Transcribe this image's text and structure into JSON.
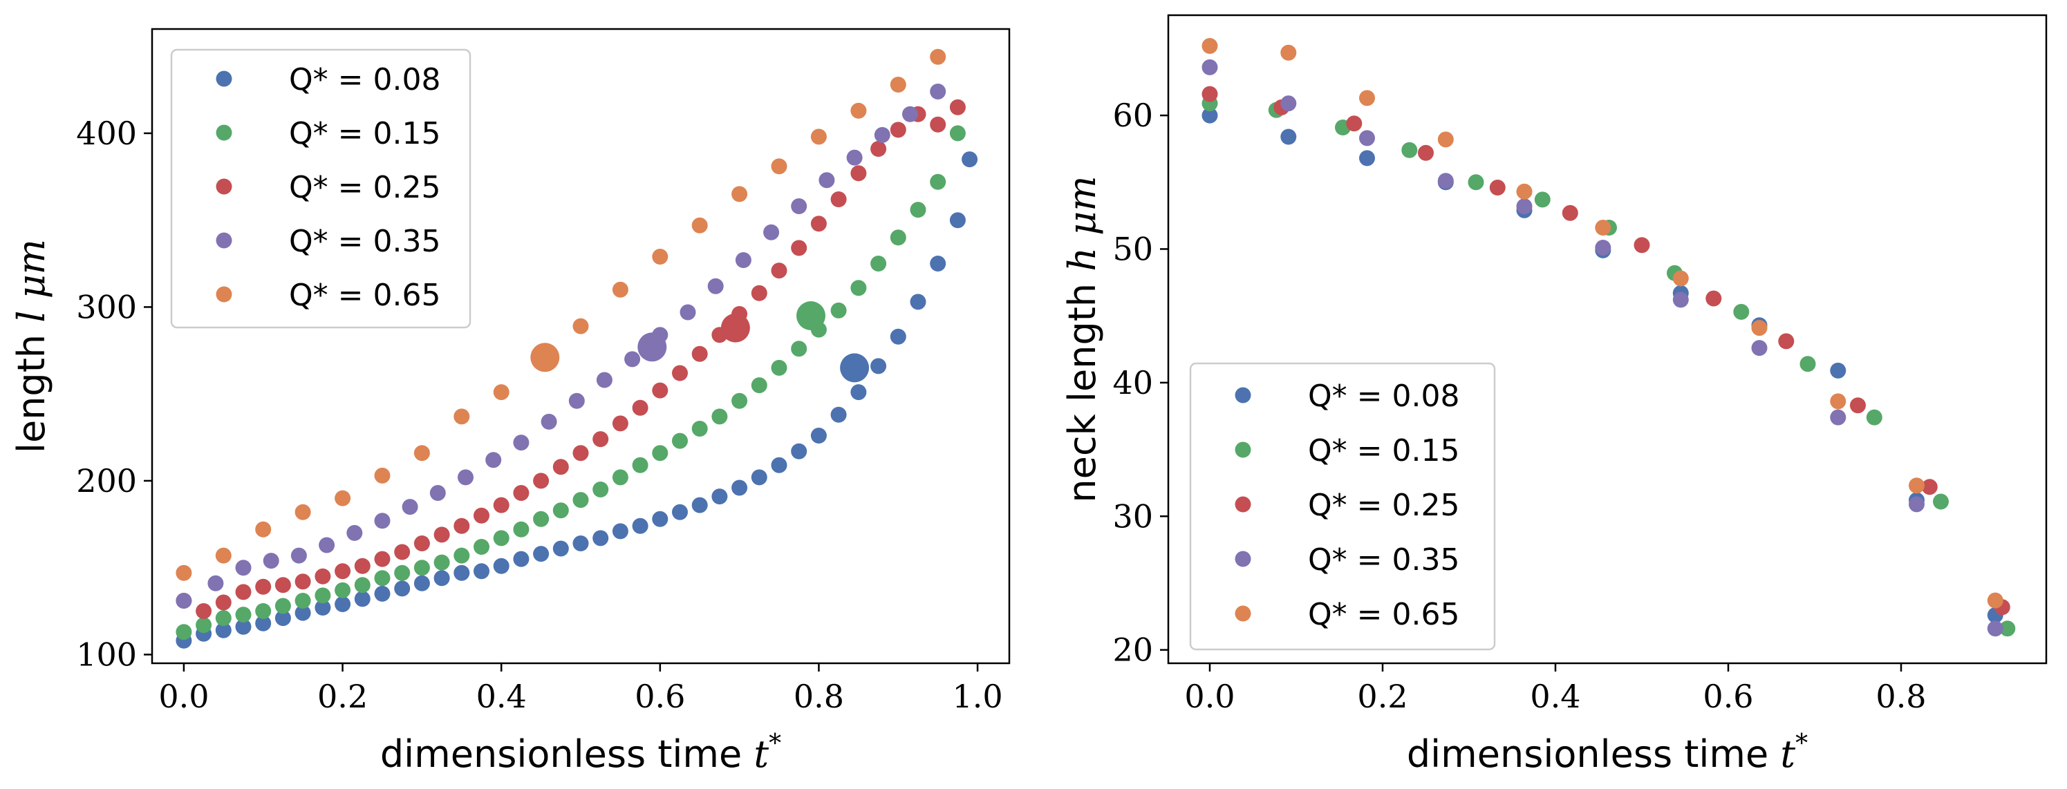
{
  "chart_data": [
    {
      "type": "scatter",
      "xlabel": "dimensionless time t*",
      "ylabel": "length l μm",
      "xlim": [
        -0.04,
        1.04
      ],
      "ylim": [
        95,
        460
      ],
      "xticks": [
        0.0,
        0.2,
        0.4,
        0.6,
        0.8,
        1.0
      ],
      "xtick_labels": [
        "0.0",
        "0.2",
        "0.4",
        "0.6",
        "0.8",
        "1.0"
      ],
      "yticks": [
        100,
        200,
        300,
        400
      ],
      "ytick_labels": [
        "100",
        "200",
        "300",
        "400"
      ],
      "legend_position": "top-left",
      "series": [
        {
          "name": "Q* = 0.08",
          "color": "#4C72B0",
          "x": [
            0.0,
            0.025,
            0.05,
            0.075,
            0.1,
            0.125,
            0.15,
            0.175,
            0.2,
            0.225,
            0.25,
            0.275,
            0.3,
            0.325,
            0.35,
            0.375,
            0.4,
            0.425,
            0.45,
            0.475,
            0.5,
            0.525,
            0.55,
            0.575,
            0.6,
            0.625,
            0.65,
            0.675,
            0.7,
            0.725,
            0.75,
            0.775,
            0.8,
            0.825,
            0.85,
            0.875,
            0.9,
            0.925,
            0.95,
            0.975,
            0.99
          ],
          "y": [
            108,
            112,
            114,
            116,
            118,
            121,
            124,
            127,
            129,
            132,
            135,
            138,
            141,
            144,
            147,
            148,
            151,
            155,
            158,
            161,
            164,
            167,
            171,
            174,
            178,
            182,
            186,
            191,
            196,
            202,
            209,
            217,
            226,
            238,
            251,
            266,
            283,
            303,
            325,
            350,
            385
          ],
          "highlight": {
            "x": 0.845,
            "y": 265
          }
        },
        {
          "name": "Q* = 0.15",
          "color": "#55A868",
          "x": [
            0.0,
            0.025,
            0.05,
            0.075,
            0.1,
            0.125,
            0.15,
            0.175,
            0.2,
            0.225,
            0.25,
            0.275,
            0.3,
            0.325,
            0.35,
            0.375,
            0.4,
            0.425,
            0.45,
            0.475,
            0.5,
            0.525,
            0.55,
            0.575,
            0.6,
            0.625,
            0.65,
            0.675,
            0.7,
            0.725,
            0.75,
            0.775,
            0.8,
            0.825,
            0.85,
            0.875,
            0.9,
            0.925,
            0.95,
            0.975
          ],
          "y": [
            113,
            117,
            121,
            123,
            125,
            128,
            131,
            134,
            137,
            140,
            144,
            147,
            150,
            153,
            157,
            162,
            167,
            172,
            178,
            183,
            189,
            195,
            202,
            209,
            216,
            223,
            230,
            237,
            246,
            255,
            265,
            276,
            287,
            298,
            311,
            325,
            340,
            356,
            372,
            400
          ],
          "highlight": {
            "x": 0.79,
            "y": 295
          }
        },
        {
          "name": "Q* = 0.25",
          "color": "#C44E52",
          "x": [
            0.0,
            0.025,
            0.05,
            0.075,
            0.1,
            0.125,
            0.15,
            0.175,
            0.2,
            0.225,
            0.25,
            0.275,
            0.3,
            0.325,
            0.35,
            0.375,
            0.4,
            0.425,
            0.45,
            0.475,
            0.5,
            0.525,
            0.55,
            0.575,
            0.6,
            0.625,
            0.65,
            0.675,
            0.7,
            0.725,
            0.75,
            0.775,
            0.8,
            0.825,
            0.85,
            0.875,
            0.9,
            0.925,
            0.95,
            0.975
          ],
          "y": [
            131,
            125,
            130,
            136,
            139,
            140,
            142,
            145,
            148,
            151,
            155,
            159,
            164,
            169,
            174,
            180,
            186,
            193,
            200,
            208,
            216,
            224,
            233,
            242,
            252,
            262,
            273,
            284,
            296,
            308,
            321,
            334,
            348,
            362,
            377,
            391,
            402,
            411,
            405,
            415
          ],
          "highlight": {
            "x": 0.695,
            "y": 288
          }
        },
        {
          "name": "Q* = 0.35",
          "color": "#8172B2",
          "x": [
            0.0,
            0.04,
            0.075,
            0.11,
            0.145,
            0.18,
            0.215,
            0.25,
            0.285,
            0.32,
            0.355,
            0.39,
            0.425,
            0.46,
            0.495,
            0.53,
            0.565,
            0.6,
            0.635,
            0.67,
            0.705,
            0.74,
            0.775,
            0.81,
            0.845,
            0.88,
            0.915,
            0.95
          ],
          "y": [
            131,
            141,
            150,
            154,
            157,
            163,
            170,
            177,
            185,
            193,
            202,
            212,
            222,
            234,
            246,
            258,
            270,
            284,
            297,
            312,
            327,
            343,
            358,
            373,
            386,
            399,
            411,
            424
          ],
          "highlight": {
            "x": 0.59,
            "y": 277
          }
        },
        {
          "name": "Q* = 0.65",
          "color": "#DD8452",
          "x": [
            0.0,
            0.05,
            0.1,
            0.15,
            0.2,
            0.25,
            0.3,
            0.35,
            0.4,
            0.5,
            0.55,
            0.6,
            0.65,
            0.7,
            0.75,
            0.8,
            0.85,
            0.9,
            0.95
          ],
          "y": [
            147,
            157,
            172,
            182,
            190,
            203,
            216,
            237,
            251,
            289,
            310,
            329,
            347,
            365,
            381,
            398,
            413,
            428,
            444
          ],
          "highlight": {
            "x": 0.455,
            "y": 271
          }
        }
      ]
    },
    {
      "type": "scatter",
      "xlabel": "dimensionless time t*",
      "ylabel": "neck length h μm",
      "xlim": [
        -0.048,
        0.968
      ],
      "ylim": [
        19,
        67.5
      ],
      "xticks": [
        0.0,
        0.2,
        0.4,
        0.6,
        0.8
      ],
      "xtick_labels": [
        "0.0",
        "0.2",
        "0.4",
        "0.6",
        "0.8"
      ],
      "yticks": [
        20,
        30,
        40,
        50,
        60
      ],
      "ytick_labels": [
        "20",
        "30",
        "40",
        "50",
        "60"
      ],
      "legend_position": "bottom-left",
      "series": [
        {
          "name": "Q* = 0.08",
          "color": "#4C72B0",
          "x": [
            0.0,
            0.091,
            0.182,
            0.273,
            0.364,
            0.455,
            0.545,
            0.636,
            0.727,
            0.818,
            0.909
          ],
          "y": [
            60.0,
            58.4,
            56.8,
            55.0,
            52.9,
            49.9,
            46.7,
            44.3,
            40.9,
            31.2,
            22.6
          ]
        },
        {
          "name": "Q* = 0.15",
          "color": "#55A868",
          "x": [
            0.0,
            0.077,
            0.154,
            0.231,
            0.308,
            0.385,
            0.462,
            0.538,
            0.615,
            0.692,
            0.769,
            0.846,
            0.923
          ],
          "y": [
            60.9,
            60.4,
            59.1,
            57.4,
            55.0,
            53.7,
            51.6,
            48.2,
            45.3,
            41.4,
            37.4,
            31.1,
            21.6
          ]
        },
        {
          "name": "Q* = 0.25",
          "color": "#C44E52",
          "x": [
            0.0,
            0.083,
            0.167,
            0.25,
            0.333,
            0.417,
            0.5,
            0.583,
            0.667,
            0.75,
            0.833,
            0.917
          ],
          "y": [
            61.6,
            60.6,
            59.4,
            57.2,
            54.6,
            52.7,
            50.3,
            46.3,
            43.1,
            38.3,
            32.2,
            23.2
          ]
        },
        {
          "name": "Q* = 0.35",
          "color": "#8172B2",
          "x": [
            0.0,
            0.091,
            0.182,
            0.273,
            0.364,
            0.455,
            0.545,
            0.636,
            0.727,
            0.818,
            0.909
          ],
          "y": [
            63.6,
            60.9,
            58.3,
            55.1,
            53.2,
            50.1,
            46.2,
            42.6,
            37.4,
            30.9,
            21.6
          ]
        },
        {
          "name": "Q* = 0.65",
          "color": "#DD8452",
          "x": [
            0.0,
            0.091,
            0.182,
            0.273,
            0.364,
            0.455,
            0.545,
            0.636,
            0.727,
            0.818,
            0.909
          ],
          "y": [
            65.2,
            64.7,
            61.3,
            58.2,
            54.3,
            51.6,
            47.8,
            44.1,
            38.6,
            32.3,
            23.7
          ]
        }
      ]
    }
  ]
}
